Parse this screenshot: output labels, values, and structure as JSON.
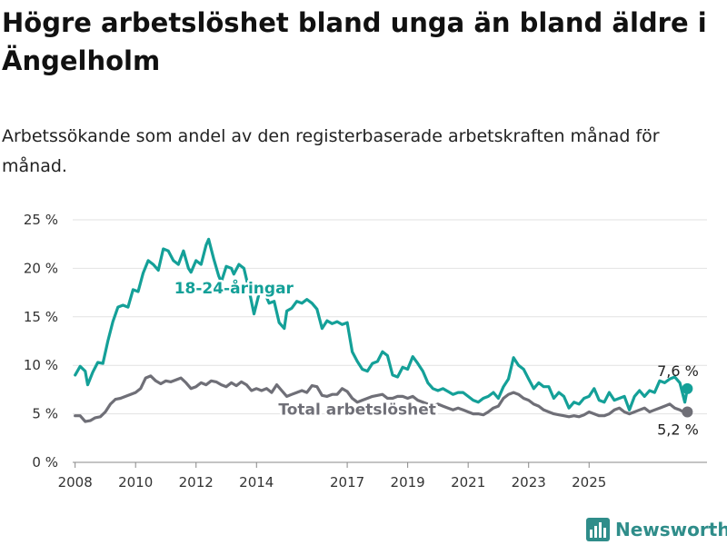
{
  "title": "Högre arbetslöshet bland unga än bland äldre i Ängelholm",
  "subtitle": "Arbetssökande som andel av den registerbaserade arbetskraften månad för månad.",
  "brand": {
    "name": "Newsworthy",
    "color": "#2f8d8a"
  },
  "chart_data": {
    "type": "line",
    "x_ticks": [
      "2008",
      "2010",
      "2012",
      "2014",
      "2017",
      "2019",
      "2021",
      "2023",
      "2025"
    ],
    "y_ticks": [
      "0 %",
      "5 %",
      "10 %",
      "15 %",
      "20 %",
      "25 %"
    ],
    "ylim": [
      0,
      25
    ],
    "grid": true,
    "series": [
      {
        "name": "18-24-åringar",
        "color": "#14a098",
        "end_label": "7,6 %",
        "points": [
          [
            "2008-01",
            9.0
          ],
          [
            "2008-03",
            9.9
          ],
          [
            "2008-05",
            9.4
          ],
          [
            "2008-06",
            8.0
          ],
          [
            "2008-08",
            9.3
          ],
          [
            "2008-10",
            10.3
          ],
          [
            "2008-12",
            10.2
          ],
          [
            "2009-02",
            12.5
          ],
          [
            "2009-04",
            14.5
          ],
          [
            "2009-06",
            16.0
          ],
          [
            "2009-08",
            16.2
          ],
          [
            "2009-10",
            16.0
          ],
          [
            "2009-12",
            17.8
          ],
          [
            "2010-02",
            17.6
          ],
          [
            "2010-04",
            19.5
          ],
          [
            "2010-06",
            20.8
          ],
          [
            "2010-08",
            20.4
          ],
          [
            "2010-10",
            19.8
          ],
          [
            "2010-12",
            22.0
          ],
          [
            "2011-02",
            21.8
          ],
          [
            "2011-04",
            20.8
          ],
          [
            "2011-06",
            20.4
          ],
          [
            "2011-08",
            21.8
          ],
          [
            "2011-10",
            20.0
          ],
          [
            "2011-11",
            19.6
          ],
          [
            "2012-01",
            20.8
          ],
          [
            "2012-03",
            20.4
          ],
          [
            "2012-05",
            22.4
          ],
          [
            "2012-06",
            23.0
          ],
          [
            "2012-08",
            21.0
          ],
          [
            "2012-10",
            19.2
          ],
          [
            "2012-11",
            18.6
          ],
          [
            "2013-01",
            20.2
          ],
          [
            "2013-03",
            20.0
          ],
          [
            "2013-04",
            19.4
          ],
          [
            "2013-06",
            20.4
          ],
          [
            "2013-08",
            20.0
          ],
          [
            "2013-10",
            17.8
          ],
          [
            "2013-12",
            15.3
          ],
          [
            "2014-02",
            17.4
          ],
          [
            "2014-04",
            17.6
          ],
          [
            "2014-06",
            16.4
          ],
          [
            "2014-08",
            16.6
          ],
          [
            "2014-10",
            14.4
          ],
          [
            "2014-12",
            13.8
          ],
          [
            "2015-01",
            15.6
          ],
          [
            "2015-03",
            15.9
          ],
          [
            "2015-05",
            16.6
          ],
          [
            "2015-07",
            16.4
          ],
          [
            "2015-09",
            16.8
          ],
          [
            "2015-11",
            16.4
          ],
          [
            "2016-01",
            15.8
          ],
          [
            "2016-03",
            13.8
          ],
          [
            "2016-05",
            14.6
          ],
          [
            "2016-07",
            14.3
          ],
          [
            "2016-09",
            14.5
          ],
          [
            "2016-11",
            14.2
          ],
          [
            "2017-01",
            14.4
          ],
          [
            "2017-03",
            11.4
          ],
          [
            "2017-05",
            10.4
          ],
          [
            "2017-07",
            9.6
          ],
          [
            "2017-09",
            9.4
          ],
          [
            "2017-11",
            10.2
          ],
          [
            "2018-01",
            10.4
          ],
          [
            "2018-03",
            11.4
          ],
          [
            "2018-05",
            11.0
          ],
          [
            "2018-07",
            9.0
          ],
          [
            "2018-09",
            8.8
          ],
          [
            "2018-11",
            9.8
          ],
          [
            "2019-01",
            9.6
          ],
          [
            "2019-03",
            10.9
          ],
          [
            "2019-05",
            10.2
          ],
          [
            "2019-07",
            9.4
          ],
          [
            "2019-09",
            8.2
          ],
          [
            "2019-11",
            7.6
          ],
          [
            "2020-01",
            7.4
          ],
          [
            "2020-03",
            7.6
          ],
          [
            "2020-05",
            7.3
          ],
          [
            "2020-07",
            7.0
          ],
          [
            "2020-09",
            7.2
          ],
          [
            "2020-11",
            7.2
          ],
          [
            "2021-01",
            6.8
          ],
          [
            "2021-03",
            6.4
          ],
          [
            "2021-05",
            6.2
          ],
          [
            "2021-07",
            6.6
          ],
          [
            "2021-09",
            6.8
          ],
          [
            "2021-11",
            7.2
          ],
          [
            "2022-01",
            6.6
          ],
          [
            "2022-03",
            7.8
          ],
          [
            "2022-05",
            8.6
          ],
          [
            "2022-07",
            10.8
          ],
          [
            "2022-09",
            10.0
          ],
          [
            "2022-11",
            9.6
          ],
          [
            "2023-01",
            8.6
          ],
          [
            "2023-03",
            7.6
          ],
          [
            "2023-05",
            8.2
          ],
          [
            "2023-07",
            7.8
          ],
          [
            "2023-09",
            7.8
          ],
          [
            "2023-11",
            6.6
          ],
          [
            "2024-01",
            7.2
          ],
          [
            "2024-03",
            6.8
          ],
          [
            "2024-05",
            5.6
          ],
          [
            "2024-07",
            6.2
          ],
          [
            "2024-09",
            6.0
          ],
          [
            "2024-11",
            6.6
          ],
          [
            "2025-01",
            6.8
          ],
          [
            "2025-03",
            7.6
          ],
          [
            "2025-05",
            6.4
          ],
          [
            "2025-07",
            6.2
          ],
          [
            "2025-09",
            7.2
          ],
          [
            "2025-11",
            6.4
          ],
          [
            "2026-01",
            6.6
          ],
          [
            "2026-03",
            6.8
          ],
          [
            "2026-05",
            5.4
          ],
          [
            "2026-07",
            6.8
          ],
          [
            "2026-09",
            7.4
          ],
          [
            "2026-11",
            6.8
          ],
          [
            "2027-01",
            7.4
          ],
          [
            "2027-03",
            7.2
          ],
          [
            "2027-05",
            8.4
          ],
          [
            "2027-07",
            8.2
          ],
          [
            "2027-09",
            8.6
          ],
          [
            "2027-11",
            8.8
          ],
          [
            "2028-01",
            8.2
          ],
          [
            "2028-03",
            6.2
          ],
          [
            "2028-04",
            7.6
          ]
        ],
        "label_at": [
          "2013-04",
          18.0
        ]
      },
      {
        "name": "Total arbetslöshet",
        "color": "#6f6f77",
        "end_label": "5,2 %",
        "points": [
          [
            "2008-01",
            4.8
          ],
          [
            "2008-03",
            4.8
          ],
          [
            "2008-05",
            4.2
          ],
          [
            "2008-07",
            4.3
          ],
          [
            "2008-09",
            4.6
          ],
          [
            "2008-11",
            4.7
          ],
          [
            "2009-01",
            5.2
          ],
          [
            "2009-03",
            6.0
          ],
          [
            "2009-05",
            6.5
          ],
          [
            "2009-07",
            6.6
          ],
          [
            "2009-09",
            6.8
          ],
          [
            "2009-11",
            7.0
          ],
          [
            "2010-01",
            7.2
          ],
          [
            "2010-03",
            7.6
          ],
          [
            "2010-05",
            8.7
          ],
          [
            "2010-07",
            8.9
          ],
          [
            "2010-09",
            8.4
          ],
          [
            "2010-11",
            8.1
          ],
          [
            "2011-01",
            8.4
          ],
          [
            "2011-03",
            8.3
          ],
          [
            "2011-05",
            8.5
          ],
          [
            "2011-07",
            8.7
          ],
          [
            "2011-09",
            8.2
          ],
          [
            "2011-11",
            7.6
          ],
          [
            "2012-01",
            7.8
          ],
          [
            "2012-03",
            8.2
          ],
          [
            "2012-05",
            8.0
          ],
          [
            "2012-07",
            8.4
          ],
          [
            "2012-09",
            8.3
          ],
          [
            "2012-11",
            8.0
          ],
          [
            "2013-01",
            7.8
          ],
          [
            "2013-03",
            8.2
          ],
          [
            "2013-05",
            7.9
          ],
          [
            "2013-07",
            8.3
          ],
          [
            "2013-09",
            8.0
          ],
          [
            "2013-11",
            7.4
          ],
          [
            "2014-01",
            7.6
          ],
          [
            "2014-03",
            7.4
          ],
          [
            "2014-05",
            7.6
          ],
          [
            "2014-07",
            7.2
          ],
          [
            "2014-09",
            8.0
          ],
          [
            "2014-11",
            7.4
          ],
          [
            "2015-01",
            6.8
          ],
          [
            "2015-03",
            7.0
          ],
          [
            "2015-05",
            7.2
          ],
          [
            "2015-07",
            7.4
          ],
          [
            "2015-09",
            7.2
          ],
          [
            "2015-11",
            7.9
          ],
          [
            "2016-01",
            7.8
          ],
          [
            "2016-03",
            6.9
          ],
          [
            "2016-05",
            6.8
          ],
          [
            "2016-07",
            7.0
          ],
          [
            "2016-09",
            7.0
          ],
          [
            "2016-11",
            7.6
          ],
          [
            "2017-01",
            7.3
          ],
          [
            "2017-03",
            6.6
          ],
          [
            "2017-05",
            6.2
          ],
          [
            "2017-07",
            6.4
          ],
          [
            "2017-09",
            6.6
          ],
          [
            "2017-11",
            6.8
          ],
          [
            "2018-01",
            6.9
          ],
          [
            "2018-03",
            7.0
          ],
          [
            "2018-05",
            6.6
          ],
          [
            "2018-07",
            6.6
          ],
          [
            "2018-09",
            6.8
          ],
          [
            "2018-11",
            6.8
          ],
          [
            "2019-01",
            6.6
          ],
          [
            "2019-03",
            6.8
          ],
          [
            "2019-05",
            6.4
          ],
          [
            "2019-07",
            6.2
          ],
          [
            "2019-09",
            6.0
          ],
          [
            "2019-11",
            5.8
          ],
          [
            "2020-01",
            6.0
          ],
          [
            "2020-03",
            5.8
          ],
          [
            "2020-05",
            5.6
          ],
          [
            "2020-07",
            5.4
          ],
          [
            "2020-09",
            5.6
          ],
          [
            "2020-11",
            5.4
          ],
          [
            "2021-01",
            5.2
          ],
          [
            "2021-03",
            5.0
          ],
          [
            "2021-05",
            5.0
          ],
          [
            "2021-07",
            4.9
          ],
          [
            "2021-09",
            5.2
          ],
          [
            "2021-11",
            5.6
          ],
          [
            "2022-01",
            5.8
          ],
          [
            "2022-03",
            6.6
          ],
          [
            "2022-05",
            7.0
          ],
          [
            "2022-07",
            7.2
          ],
          [
            "2022-09",
            7.0
          ],
          [
            "2022-11",
            6.6
          ],
          [
            "2023-01",
            6.4
          ],
          [
            "2023-03",
            6.0
          ],
          [
            "2023-05",
            5.8
          ],
          [
            "2023-07",
            5.4
          ],
          [
            "2023-09",
            5.2
          ],
          [
            "2023-11",
            5.0
          ],
          [
            "2024-01",
            4.9
          ],
          [
            "2024-03",
            4.8
          ],
          [
            "2024-05",
            4.7
          ],
          [
            "2024-07",
            4.8
          ],
          [
            "2024-09",
            4.7
          ],
          [
            "2024-11",
            4.9
          ],
          [
            "2025-01",
            5.2
          ],
          [
            "2025-03",
            5.0
          ],
          [
            "2025-05",
            4.8
          ],
          [
            "2025-07",
            4.8
          ],
          [
            "2025-09",
            5.0
          ],
          [
            "2025-11",
            5.4
          ],
          [
            "2026-01",
            5.6
          ],
          [
            "2026-03",
            5.2
          ],
          [
            "2026-05",
            5.0
          ],
          [
            "2026-07",
            5.2
          ],
          [
            "2026-09",
            5.4
          ],
          [
            "2026-11",
            5.6
          ],
          [
            "2027-01",
            5.2
          ],
          [
            "2027-03",
            5.4
          ],
          [
            "2027-05",
            5.6
          ],
          [
            "2027-07",
            5.8
          ],
          [
            "2027-09",
            6.0
          ],
          [
            "2027-11",
            5.6
          ],
          [
            "2028-01",
            5.4
          ],
          [
            "2028-03",
            5.1
          ],
          [
            "2028-04",
            5.2
          ]
        ],
        "label_at": [
          "2017-05",
          5.5
        ]
      }
    ]
  }
}
